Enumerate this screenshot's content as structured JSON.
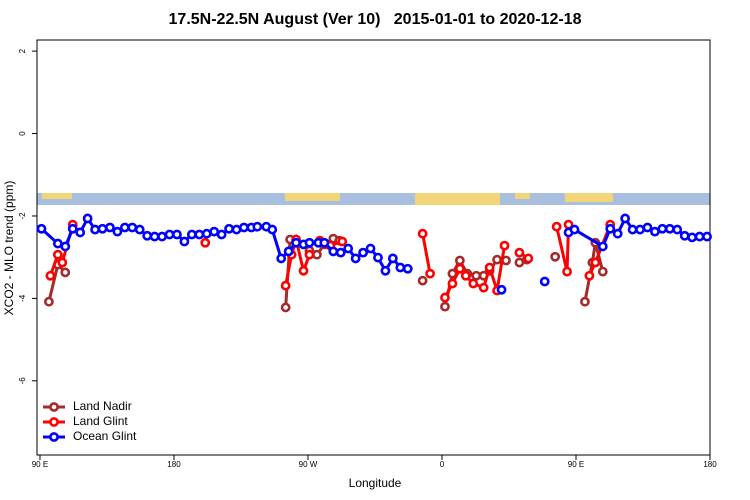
{
  "chart_data": {
    "type": "line",
    "title": "17.5N-22.5N August (Ver 10)   2015-01-01 to 2020-12-18",
    "x_label": "Longitude",
    "y_label": "XCO2 - MLO trend (ppm)",
    "xlim": [
      88,
      540
    ],
    "ylim": [
      -7.8,
      2.27
    ],
    "xticks": [
      {
        "value": 90,
        "label": "90 E"
      },
      180,
      {
        "value": 270,
        "label": "90 W"
      },
      {
        "value": 360,
        "label": "0"
      },
      {
        "value": 450,
        "label": "90 E"
      },
      {
        "value": 540,
        "label": "180"
      }
    ],
    "yticks": [
      2,
      0,
      -2,
      -4,
      -6
    ],
    "legend": "bottom-left",
    "series": [
      {
        "name": "Land Nadir",
        "color": "#a52a2a",
        "x": [
          96,
          102,
          107,
          null,
          255,
          258,
          null,
          271,
          276,
          281,
          287,
          291,
          null,
          347,
          null,
          362,
          367,
          372,
          377,
          383,
          388,
          392,
          397,
          403,
          null,
          412,
          417,
          null,
          436,
          null,
          456,
          461,
          463,
          468
        ],
        "values": [
          -4.08,
          -3.18,
          -3.37,
          null,
          -4.22,
          -2.57,
          null,
          -2.84,
          -2.94,
          -2.69,
          -2.55,
          -2.6,
          null,
          -3.57,
          null,
          -4.2,
          -3.4,
          -3.08,
          -3.4,
          -3.45,
          -3.45,
          -3.33,
          -3.06,
          -3.08,
          null,
          -3.13,
          -3.06,
          null,
          -2.99,
          null,
          -4.08,
          -3.13,
          -2.65,
          -3.35
        ]
      },
      {
        "name": "Land Glint",
        "color": "#ff0000",
        "x": [
          97,
          102,
          105,
          112,
          null,
          201,
          null,
          255,
          259,
          262,
          267,
          271,
          null,
          278,
          285,
          293,
          null,
          347,
          352,
          null,
          362,
          367,
          372,
          376,
          381,
          388,
          392,
          397,
          402,
          null,
          412,
          418,
          null,
          437,
          444,
          445,
          null,
          459,
          463,
          473
        ],
        "values": [
          -3.45,
          -2.94,
          -3.13,
          -2.21,
          null,
          -2.65,
          null,
          -3.69,
          -2.94,
          -2.57,
          -3.33,
          -2.94,
          null,
          -2.6,
          -2.72,
          -2.62,
          null,
          -2.43,
          -3.4,
          null,
          -3.98,
          -3.64,
          -3.28,
          -3.45,
          -3.64,
          -3.74,
          -3.25,
          -3.81,
          -2.72,
          null,
          -2.89,
          -3.03,
          null,
          -2.26,
          -3.35,
          -2.21,
          null,
          -3.45,
          -3.13,
          -2.21
        ]
      },
      {
        "name": "Ocean Glint",
        "color": "#0000ff",
        "x": [
          91,
          102,
          107,
          112,
          117,
          122,
          127,
          132,
          137,
          142,
          147,
          152,
          157,
          162,
          167,
          172,
          177,
          182,
          187,
          192,
          197,
          202,
          207,
          212,
          217,
          222,
          227,
          232,
          236,
          242,
          246,
          252,
          257,
          262,
          267,
          271,
          277,
          281,
          287,
          292,
          297,
          302,
          307,
          312,
          317,
          322,
          327,
          332,
          337,
          null,
          400,
          null,
          429,
          null,
          445,
          449,
          468,
          473,
          478,
          483,
          488,
          493,
          498,
          503,
          508,
          513,
          518,
          523,
          528,
          533,
          538
        ],
        "values": [
          -2.31,
          -2.67,
          -2.74,
          -2.31,
          -2.4,
          -2.06,
          -2.33,
          -2.31,
          -2.28,
          -2.38,
          -2.28,
          -2.28,
          -2.33,
          -2.48,
          -2.5,
          -2.5,
          -2.45,
          -2.45,
          -2.62,
          -2.45,
          -2.45,
          -2.43,
          -2.38,
          -2.45,
          -2.31,
          -2.33,
          -2.28,
          -2.28,
          -2.26,
          -2.26,
          -2.33,
          -3.03,
          -2.86,
          -2.65,
          -2.69,
          -2.65,
          -2.65,
          -2.65,
          -2.86,
          -2.89,
          -2.79,
          -3.03,
          -2.89,
          -2.79,
          -3.01,
          -3.33,
          -3.03,
          -3.25,
          -3.28,
          null,
          -3.79,
          null,
          -3.59,
          null,
          -2.4,
          -2.33,
          -2.74,
          -2.31,
          -2.43,
          -2.06,
          -2.33,
          -2.33,
          -2.28,
          -2.38,
          -2.31,
          -2.31,
          -2.33,
          -2.48,
          -2.52,
          -2.5,
          -2.5
        ]
      }
    ]
  }
}
